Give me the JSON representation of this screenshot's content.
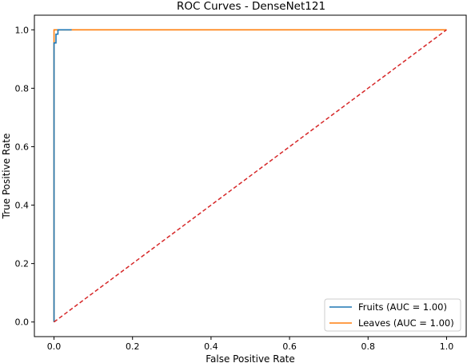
{
  "chart_data": {
    "type": "line",
    "title": "ROC Curves - DenseNet121",
    "xlabel": "False Positive Rate",
    "ylabel": "True Positive Rate",
    "xlim": [
      -0.05,
      1.05
    ],
    "ylim": [
      -0.05,
      1.05
    ],
    "xticks": [
      0.0,
      0.2,
      0.4,
      0.6,
      0.8,
      1.0
    ],
    "xtick_labels": [
      "0.0",
      "0.2",
      "0.4",
      "0.6",
      "0.8",
      "1.0"
    ],
    "yticks": [
      0.0,
      0.2,
      0.4,
      0.6,
      0.8,
      1.0
    ],
    "ytick_labels": [
      "0.0",
      "0.2",
      "0.4",
      "0.6",
      "0.8",
      "1.0"
    ],
    "grid": false,
    "legend_position": "lower-right",
    "series": [
      {
        "name": "Fruits (AUC = 1.00)",
        "color": "#1f77b4",
        "line_style": "solid",
        "x": [
          0.0,
          0.0,
          0.005,
          0.005,
          0.01,
          0.01,
          0.045
        ],
        "y": [
          0.0,
          0.955,
          0.955,
          0.985,
          0.985,
          1.0,
          1.0
        ]
      },
      {
        "name": "Leaves (AUC = 1.00)",
        "color": "#ff7f0e",
        "line_style": "solid",
        "x": [
          0.0,
          0.0,
          1.0
        ],
        "y": [
          0.0,
          1.0,
          1.0
        ]
      }
    ],
    "reference_line": {
      "color": "#d62728",
      "line_style": "dashed",
      "x": [
        0.0,
        1.0
      ],
      "y": [
        0.0,
        1.0
      ]
    }
  }
}
